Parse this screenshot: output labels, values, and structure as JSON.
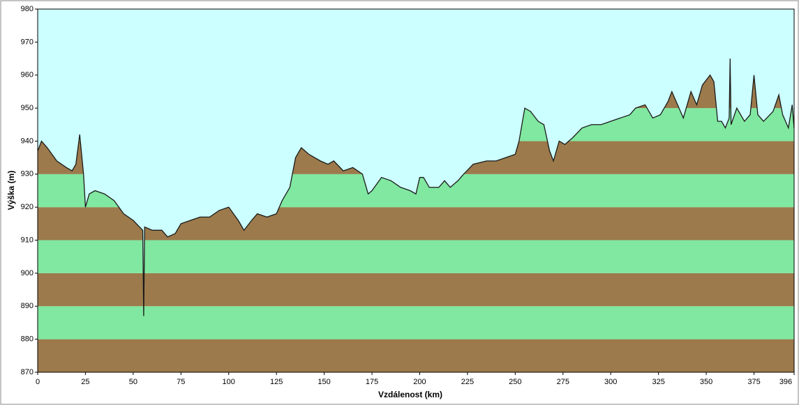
{
  "chart_data": {
    "type": "area",
    "x_label": "Vzdálenost  (km)",
    "y_label": "Výška (m)",
    "x": [
      0,
      2,
      5,
      10,
      15,
      18,
      20,
      22,
      24,
      25,
      27,
      30,
      35,
      40,
      45,
      50,
      55,
      55.5,
      56,
      60,
      65,
      68,
      72,
      75,
      80,
      85,
      90,
      95,
      100,
      105,
      108,
      112,
      115,
      120,
      125,
      128,
      132,
      135,
      138,
      142,
      148,
      152,
      155,
      160,
      165,
      170,
      173,
      175,
      180,
      185,
      190,
      195,
      198,
      200,
      202,
      205,
      210,
      213,
      216,
      220,
      223,
      228,
      235,
      240,
      245,
      250,
      252,
      255,
      258,
      262,
      265,
      268,
      270,
      273,
      276,
      280,
      285,
      290,
      295,
      300,
      305,
      310,
      313,
      318,
      322,
      326,
      330,
      332,
      335,
      338,
      342,
      345,
      348,
      352,
      354,
      356,
      358,
      360,
      362,
      362.5,
      363,
      366,
      370,
      373,
      375,
      377,
      380,
      385,
      388,
      390,
      393,
      395,
      396
    ],
    "values": [
      937,
      940,
      938,
      934,
      932,
      931,
      933,
      942,
      930,
      920,
      924,
      925,
      924,
      922,
      918,
      916,
      913,
      887,
      914,
      913,
      913,
      911,
      912,
      915,
      916,
      917,
      917,
      919,
      920,
      916,
      913,
      916,
      918,
      917,
      918,
      922,
      926,
      935,
      938,
      936,
      934,
      933,
      934,
      931,
      932,
      930,
      924,
      925,
      929,
      928,
      926,
      925,
      924,
      929,
      929,
      926,
      926,
      928,
      926,
      928,
      930,
      933,
      934,
      934,
      935,
      936,
      940,
      950,
      949,
      946,
      945,
      937,
      934,
      940,
      939,
      941,
      944,
      945,
      945,
      946,
      947,
      948,
      950,
      951,
      947,
      948,
      952,
      955,
      951,
      947,
      955,
      951,
      957,
      960,
      958,
      946,
      946,
      944,
      947,
      965,
      945,
      950,
      946,
      948,
      960,
      948,
      946,
      949,
      954,
      948,
      944,
      951,
      944
    ],
    "xlim": [
      0,
      396
    ],
    "ylim": [
      870,
      980
    ],
    "xticks": [
      0,
      25,
      50,
      75,
      100,
      125,
      150,
      175,
      200,
      225,
      250,
      275,
      300,
      325,
      350,
      375,
      396
    ],
    "yticks": [
      870,
      880,
      890,
      900,
      910,
      920,
      930,
      940,
      950,
      960,
      970,
      980
    ],
    "band_colors": [
      "#9c7a4c",
      "#80e8a0"
    ],
    "sky_color": "#ccffff",
    "line_color": "#1a1a1a"
  }
}
